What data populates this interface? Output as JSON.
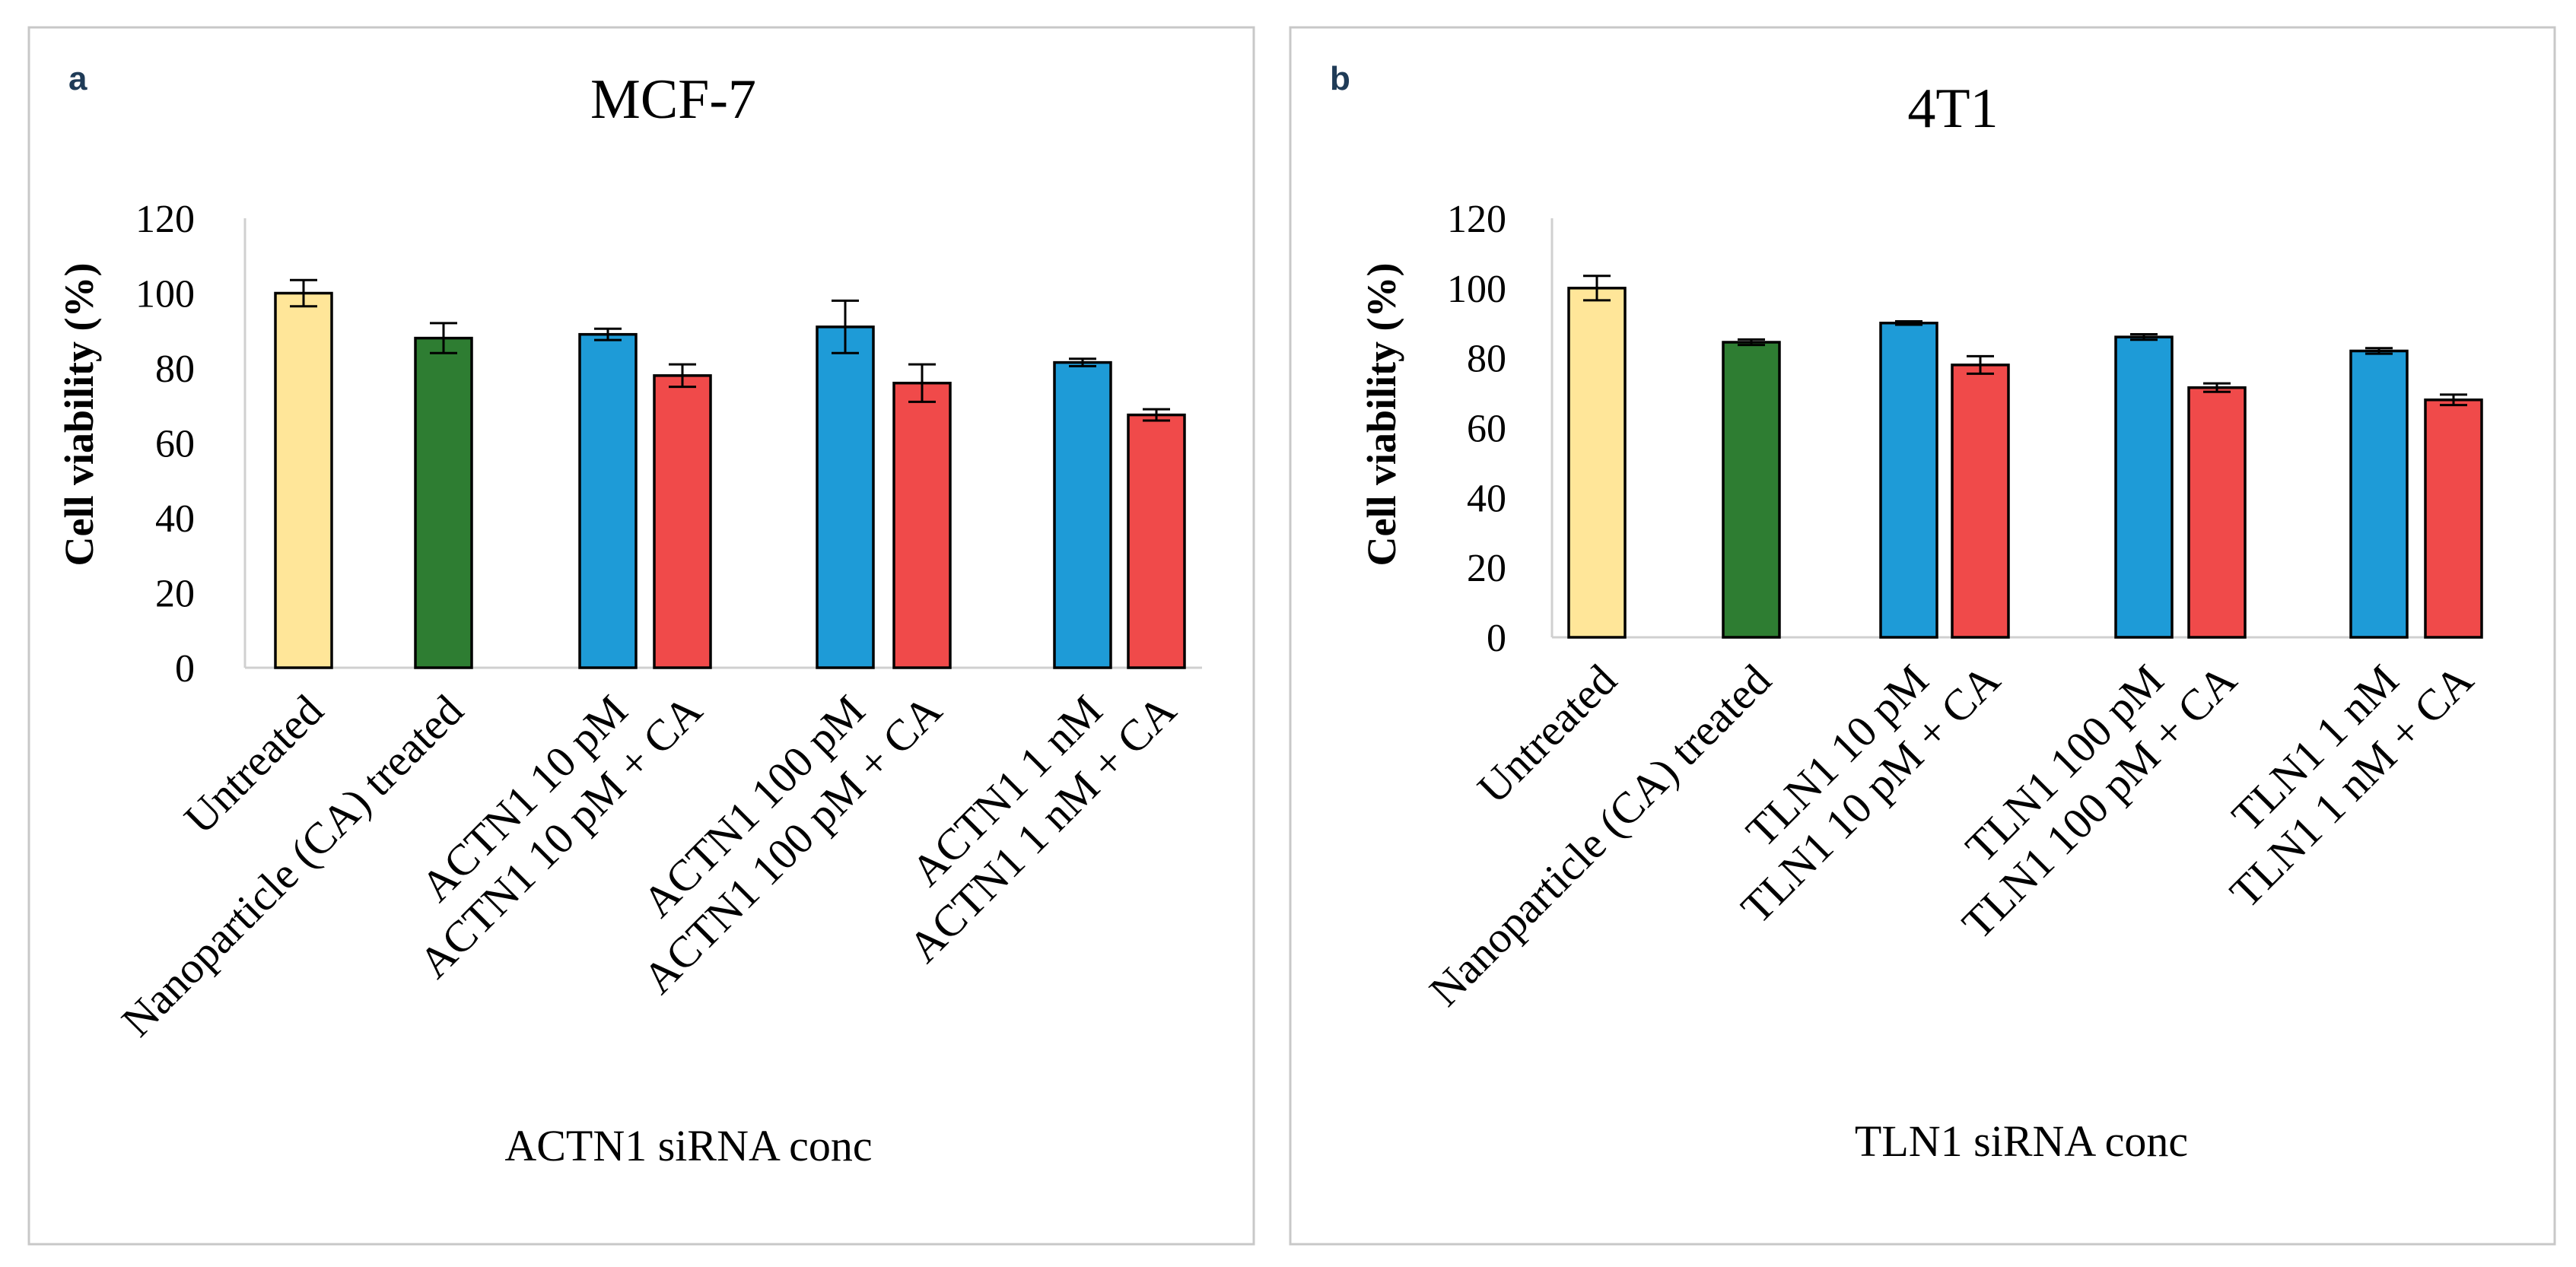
{
  "chart_data": [
    {
      "type": "bar",
      "panel_label": "a",
      "title": "MCF-7",
      "xlabel": "ACTN1 siRNA conc",
      "ylabel": "Cell viability  (%)",
      "ylim": [
        0,
        120
      ],
      "yticks": [
        "0",
        "20",
        "40",
        "60",
        "80",
        "100",
        "120"
      ],
      "categories": [
        "Untreated",
        "Nanoparticle (CA) treated",
        "ACTN1 10 pM",
        "ACTN1 10 pM + CA",
        "ACTN1 100 pM",
        "ACTN1 100 pM + CA",
        "ACTN1 1 nM",
        "ACTN1 1 nM + CA"
      ],
      "values": [
        100,
        88,
        89,
        78,
        91,
        76,
        81.5,
        67.5
      ],
      "errors": [
        3.5,
        4,
        1.5,
        3,
        7,
        5,
        1,
        1.5
      ],
      "colors": [
        "#ffe699",
        "#2e7d32",
        "#1e9bd7",
        "#f04a4a",
        "#1e9bd7",
        "#f04a4a",
        "#1e9bd7",
        "#f04a4a"
      ]
    },
    {
      "type": "bar",
      "panel_label": "b",
      "title": "4T1",
      "xlabel": "TLN1 siRNA conc",
      "ylabel": "Cell viability  (%)",
      "ylim": [
        0,
        120
      ],
      "yticks": [
        "0",
        "20",
        "40",
        "60",
        "80",
        "100",
        "120"
      ],
      "categories": [
        "Untreated",
        "Nanoparticle (CA) treated",
        "TLN1 10 pM",
        "TLN1 10 pM + CA",
        "TLN1 100 pM",
        "TLN1 100 pM + CA",
        "TLN1 1 nM",
        "TLN1 1 nM + CA"
      ],
      "values": [
        100,
        84.5,
        90,
        78,
        86,
        71.5,
        82,
        68
      ],
      "errors": [
        3.5,
        0.8,
        0.5,
        2.5,
        0.8,
        1.2,
        0.8,
        1.5
      ],
      "colors": [
        "#ffe699",
        "#2e7d32",
        "#1e9bd7",
        "#f04a4a",
        "#1e9bd7",
        "#f04a4a",
        "#1e9bd7",
        "#f04a4a"
      ]
    }
  ]
}
